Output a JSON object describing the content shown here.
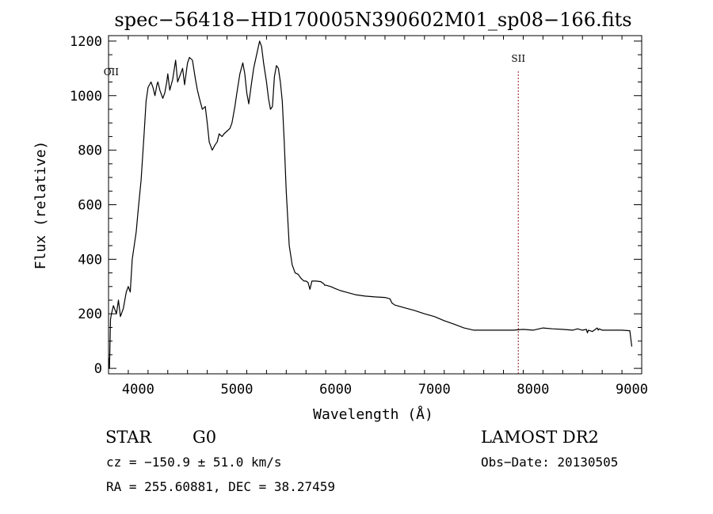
{
  "chart_data": {
    "type": "line",
    "title": "spec−56418−HD170005N390602M01_sp08−166.fits",
    "xlabel": "Wavelength (Å)",
    "ylabel": "Flux (relative)",
    "xlim": [
      3700,
      9100
    ],
    "ylim": [
      -20,
      1220
    ],
    "x_ticks": [
      4000,
      5000,
      6000,
      7000,
      8000,
      9000
    ],
    "x_tick_labels": [
      "4000",
      "5000",
      "6000",
      "7000",
      "8000",
      "9000"
    ],
    "y_ticks": [
      0,
      200,
      400,
      600,
      800,
      1000,
      1200
    ],
    "y_tick_labels": [
      "0",
      "200",
      "400",
      "600",
      "800",
      "1000",
      "1200"
    ],
    "grid": false,
    "series": [
      {
        "color": "#000000",
        "x": [
          3700,
          3710,
          3720,
          3730,
          3750,
          3780,
          3800,
          3820,
          3850,
          3880,
          3900,
          3920,
          3940,
          3960,
          3980,
          4000,
          4030,
          4060,
          4080,
          4100,
          4130,
          4150,
          4170,
          4190,
          4200,
          4220,
          4250,
          4270,
          4290,
          4300,
          4320,
          4350,
          4380,
          4400,
          4420,
          4450,
          4470,
          4500,
          4520,
          4550,
          4580,
          4600,
          4620,
          4650,
          4680,
          4700,
          4720,
          4750,
          4780,
          4800,
          4820,
          4850,
          4870,
          4900,
          4930,
          4950,
          4980,
          5000,
          5030,
          5060,
          5080,
          5100,
          5120,
          5150,
          5170,
          5200,
          5230,
          5250,
          5270,
          5300,
          5320,
          5340,
          5360,
          5380,
          5400,
          5420,
          5440,
          5460,
          5480,
          5500,
          5530,
          5560,
          5590,
          5620,
          5650,
          5680,
          5700,
          5720,
          5740,
          5760,
          5800,
          5850,
          5880,
          5890,
          5900,
          5950,
          6000,
          6050,
          6100,
          6200,
          6300,
          6400,
          6500,
          6550,
          6560,
          6570,
          6600,
          6700,
          6800,
          6900,
          7000,
          7100,
          7200,
          7300,
          7400,
          7500,
          7600,
          7700,
          7800,
          7900,
          8000,
          8100,
          8200,
          8300,
          8400,
          8450,
          8500,
          8540,
          8550,
          8560,
          8600,
          8650,
          8660,
          8670,
          8700,
          8800,
          8900,
          8980,
          9000
        ],
        "y": [
          40,
          0,
          180,
          200,
          230,
          200,
          250,
          190,
          220,
          280,
          300,
          280,
          400,
          450,
          500,
          580,
          690,
          860,
          980,
          1030,
          1050,
          1030,
          1000,
          1040,
          1050,
          1020,
          990,
          1010,
          1050,
          1080,
          1020,
          1060,
          1130,
          1050,
          1070,
          1100,
          1040,
          1120,
          1140,
          1130,
          1060,
          1020,
          990,
          950,
          960,
          900,
          830,
          800,
          820,
          830,
          860,
          850,
          860,
          870,
          880,
          900,
          960,
          1010,
          1080,
          1120,
          1080,
          1010,
          970,
          1050,
          1100,
          1150,
          1200,
          1180,
          1120,
          1050,
          990,
          950,
          960,
          1070,
          1110,
          1100,
          1050,
          980,
          830,
          650,
          450,
          380,
          350,
          345,
          330,
          320,
          320,
          315,
          290,
          320,
          320,
          318,
          310,
          305,
          305,
          300,
          292,
          285,
          280,
          270,
          265,
          262,
          260,
          255,
          248,
          240,
          232,
          222,
          212,
          200,
          190,
          175,
          162,
          148,
          140,
          140,
          140,
          140,
          140,
          143,
          140,
          148,
          145,
          143,
          140,
          145,
          140,
          143,
          130,
          140,
          135,
          148,
          140,
          145,
          140,
          140,
          140,
          138,
          80
        ]
      }
    ],
    "annotations": [
      {
        "text": "OII",
        "x": 3727,
        "line": false
      },
      {
        "text": "SII",
        "x": 7850,
        "line": true,
        "color": "#8b1a1a"
      }
    ]
  },
  "info": {
    "object_class": "STAR",
    "subclass": "G0",
    "survey": "LAMOST DR2",
    "cz": "cz = −150.9 ± 51.0 km/s",
    "obs_date": "Obs−Date: 20130505",
    "coords": "RA = 255.60881, DEC =  38.27459"
  }
}
